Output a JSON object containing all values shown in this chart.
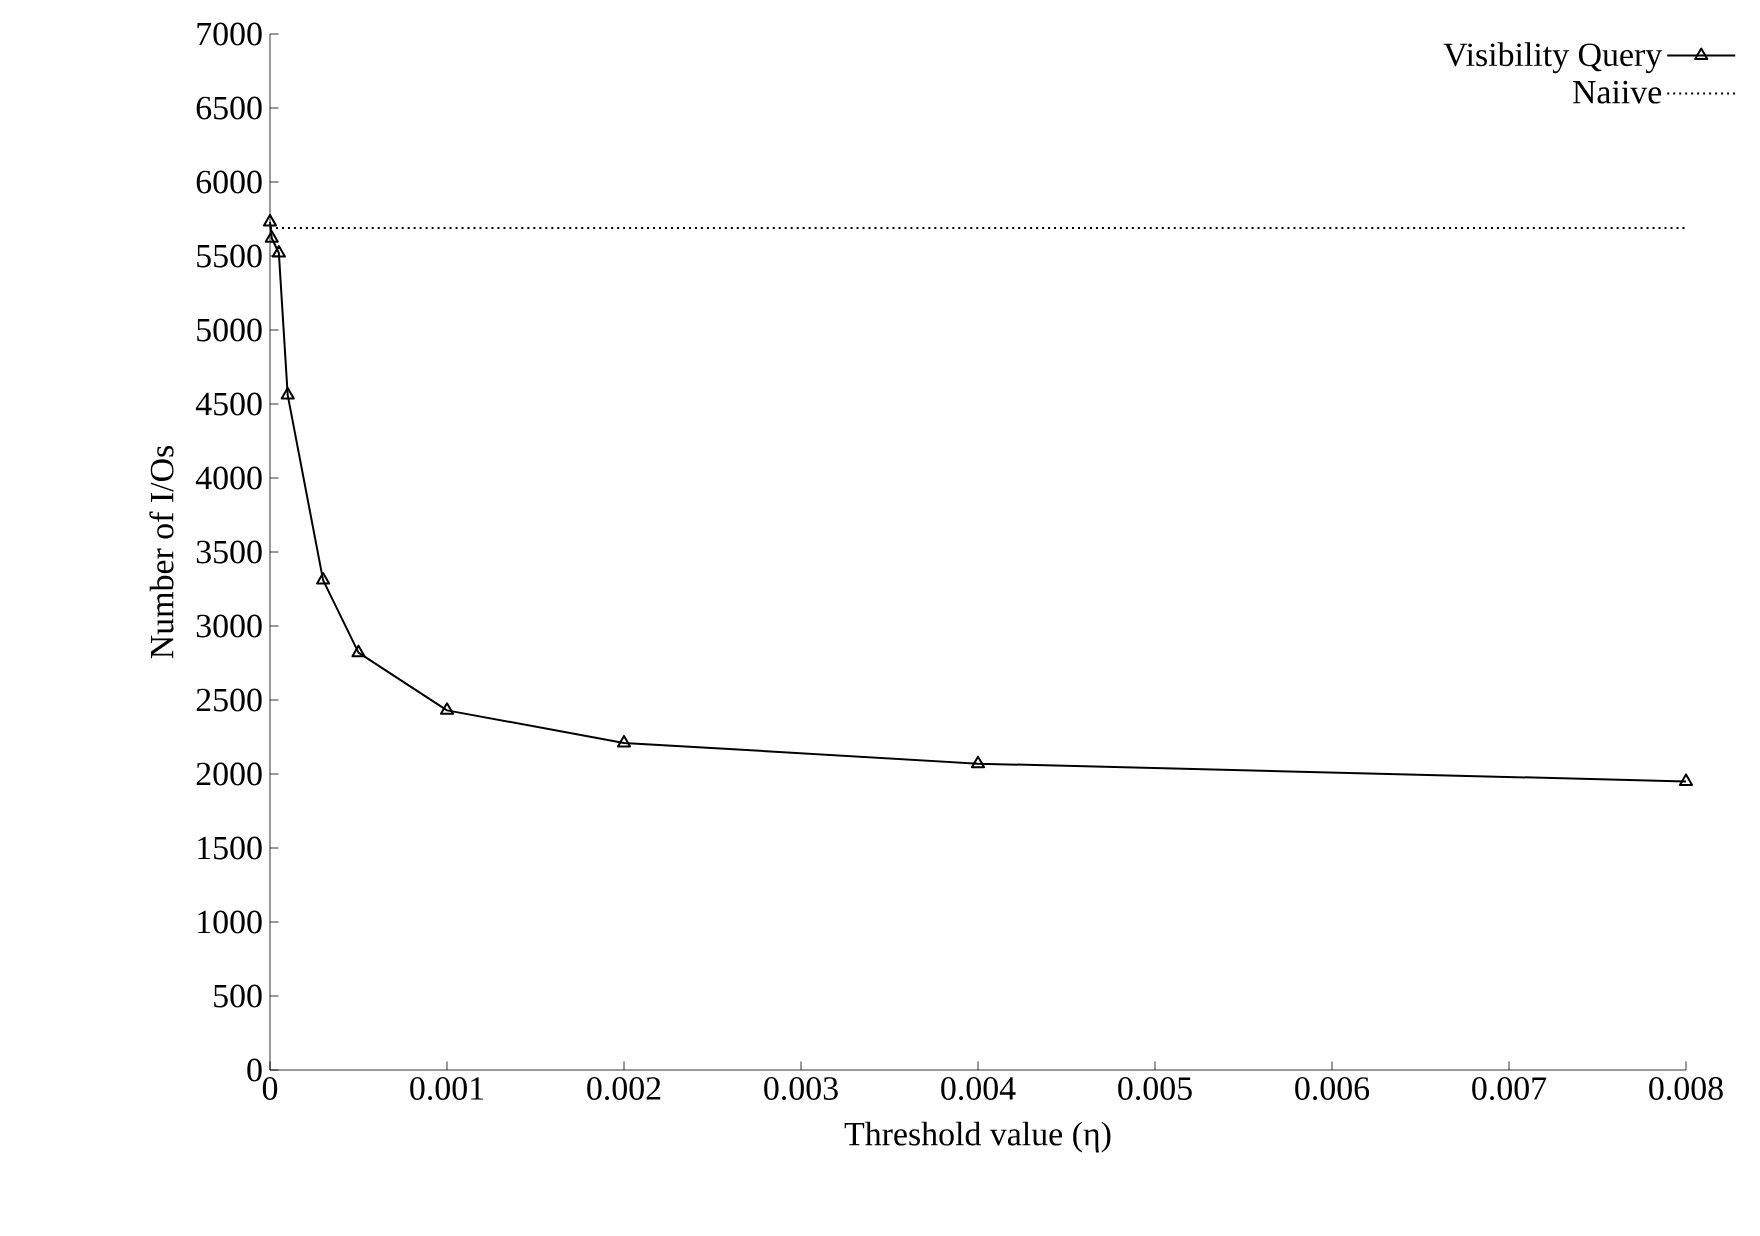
{
  "chart_data": {
    "type": "line",
    "xlabel": "Threshold value (η)",
    "ylabel": "Number of I/Os",
    "xlim": [
      0,
      0.008
    ],
    "ylim": [
      0,
      7000
    ],
    "xticks": [
      0,
      0.001,
      0.002,
      0.003,
      0.004,
      0.005,
      0.006,
      0.007,
      0.008
    ],
    "yticks": [
      0,
      500,
      1000,
      1500,
      2000,
      2500,
      3000,
      3500,
      4000,
      4500,
      5000,
      5500,
      6000,
      6500,
      7000
    ],
    "legend": "top right",
    "grid": false,
    "series": [
      {
        "name": "Visibility Query",
        "color": "#000000",
        "marker": "triangle",
        "line_style": "solid",
        "x": [
          0,
          1e-05,
          5e-05,
          0.0001,
          0.0003,
          0.0005,
          0.001,
          0.002,
          0.004,
          0.008
        ],
        "values": [
          5730,
          5620,
          5520,
          4560,
          3310,
          2820,
          2430,
          2210,
          2070,
          1950
        ]
      },
      {
        "name": "Naiive",
        "color": "#000000",
        "marker": "none",
        "line_style": "dotted",
        "x": [
          0,
          0.008
        ],
        "values": [
          5690,
          5690
        ]
      }
    ]
  }
}
